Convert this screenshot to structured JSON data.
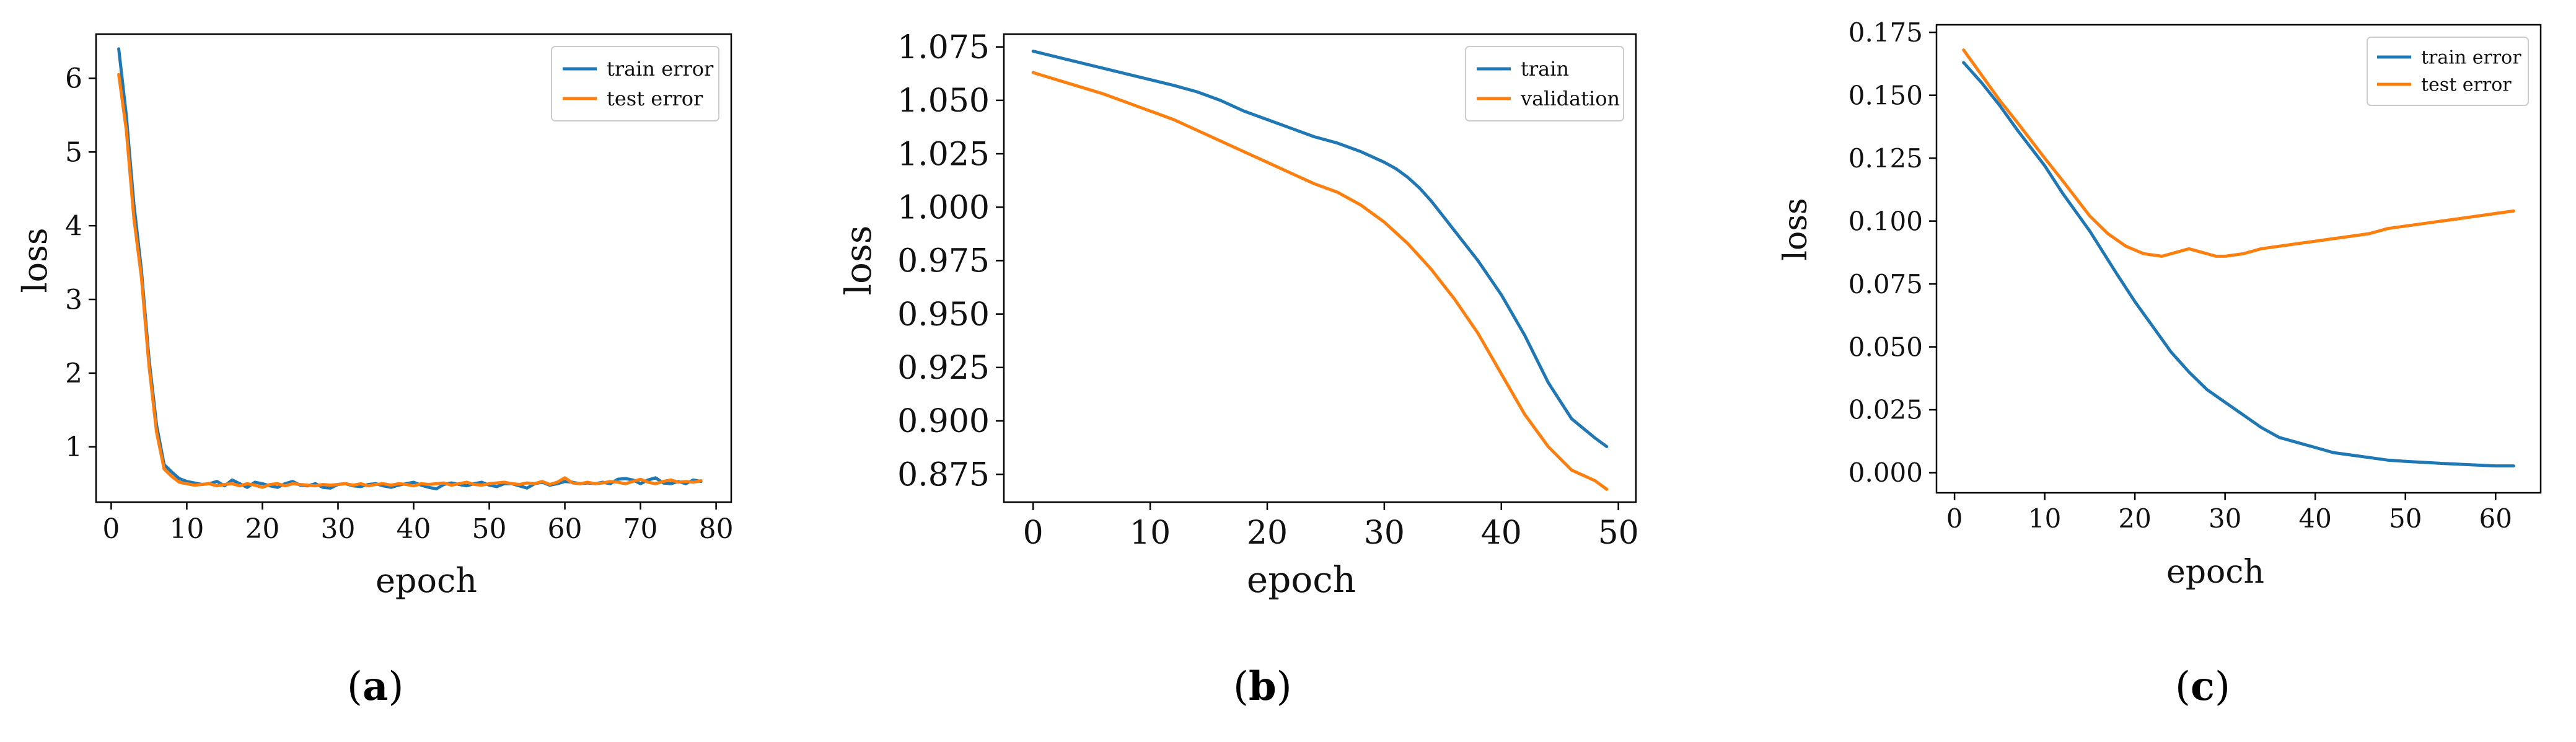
{
  "colors": {
    "train": "#1f77b4",
    "test": "#ff7f0e",
    "axis": "#000000"
  },
  "captions": [
    {
      "open": "(",
      "letter": "a",
      "close": ")"
    },
    {
      "open": "(",
      "letter": "b",
      "close": ")"
    },
    {
      "open": "(",
      "letter": "c",
      "close": ")"
    }
  ],
  "chart_data": [
    {
      "type": "line",
      "title": "",
      "xlabel": "epoch",
      "ylabel": "loss",
      "xlim": [
        -2,
        82
      ],
      "ylim": [
        0.25,
        6.6
      ],
      "xticks": [
        0,
        10,
        20,
        30,
        40,
        50,
        60,
        70,
        80
      ],
      "yticks": [
        1,
        2,
        3,
        4,
        5,
        6
      ],
      "legend_position": "top-right",
      "series": [
        {
          "name": "train error",
          "color": "#1f77b4",
          "x": [
            1,
            2,
            3,
            4,
            5,
            6,
            7,
            8,
            9,
            10,
            11,
            12,
            13,
            14,
            15,
            16,
            17,
            18,
            19,
            20,
            21,
            22,
            23,
            24,
            25,
            26,
            27,
            28,
            29,
            30,
            31,
            32,
            33,
            34,
            35,
            36,
            37,
            38,
            39,
            40,
            41,
            42,
            43,
            44,
            45,
            46,
            47,
            48,
            49,
            50,
            51,
            52,
            53,
            54,
            55,
            56,
            57,
            58,
            59,
            60,
            61,
            62,
            63,
            64,
            65,
            66,
            67,
            68,
            69,
            70,
            71,
            72,
            73,
            74,
            75,
            76,
            77,
            78
          ],
          "y": [
            6.4,
            5.5,
            4.3,
            3.4,
            2.2,
            1.3,
            0.76,
            0.66,
            0.57,
            0.53,
            0.51,
            0.49,
            0.5,
            0.53,
            0.47,
            0.55,
            0.5,
            0.45,
            0.52,
            0.5,
            0.47,
            0.45,
            0.5,
            0.53,
            0.48,
            0.47,
            0.5,
            0.45,
            0.44,
            0.49,
            0.5,
            0.47,
            0.46,
            0.49,
            0.5,
            0.47,
            0.45,
            0.48,
            0.5,
            0.52,
            0.48,
            0.45,
            0.43,
            0.49,
            0.51,
            0.49,
            0.47,
            0.5,
            0.52,
            0.48,
            0.46,
            0.5,
            0.5,
            0.47,
            0.44,
            0.5,
            0.52,
            0.48,
            0.5,
            0.53,
            0.52,
            0.5,
            0.51,
            0.5,
            0.52,
            0.5,
            0.56,
            0.57,
            0.55,
            0.5,
            0.55,
            0.58,
            0.51,
            0.5,
            0.53,
            0.5,
            0.55,
            0.53
          ]
        },
        {
          "name": "test error",
          "color": "#ff7f0e",
          "x": [
            1,
            2,
            3,
            4,
            5,
            6,
            7,
            8,
            9,
            10,
            11,
            12,
            13,
            14,
            15,
            16,
            17,
            18,
            19,
            20,
            21,
            22,
            23,
            24,
            25,
            26,
            27,
            28,
            29,
            30,
            31,
            32,
            33,
            34,
            35,
            36,
            37,
            38,
            39,
            40,
            41,
            42,
            43,
            44,
            45,
            46,
            47,
            48,
            49,
            50,
            51,
            52,
            53,
            54,
            55,
            56,
            57,
            58,
            59,
            60,
            61,
            62,
            63,
            64,
            65,
            66,
            67,
            68,
            69,
            70,
            71,
            72,
            73,
            74,
            75,
            76,
            77,
            78
          ],
          "y": [
            6.05,
            5.3,
            4.1,
            3.3,
            2.1,
            1.2,
            0.7,
            0.6,
            0.52,
            0.5,
            0.48,
            0.49,
            0.5,
            0.47,
            0.49,
            0.5,
            0.47,
            0.5,
            0.48,
            0.45,
            0.49,
            0.5,
            0.47,
            0.5,
            0.49,
            0.48,
            0.47,
            0.49,
            0.48,
            0.49,
            0.5,
            0.48,
            0.5,
            0.47,
            0.49,
            0.5,
            0.48,
            0.5,
            0.49,
            0.47,
            0.5,
            0.49,
            0.5,
            0.51,
            0.48,
            0.5,
            0.52,
            0.49,
            0.48,
            0.5,
            0.51,
            0.52,
            0.5,
            0.49,
            0.51,
            0.5,
            0.53,
            0.49,
            0.52,
            0.58,
            0.51,
            0.5,
            0.52,
            0.5,
            0.51,
            0.53,
            0.52,
            0.5,
            0.53,
            0.56,
            0.52,
            0.5,
            0.53,
            0.55,
            0.52,
            0.53,
            0.52,
            0.54
          ]
        }
      ]
    },
    {
      "type": "line",
      "title": "",
      "xlabel": "epoch",
      "ylabel": "loss",
      "xlim": [
        -2.5,
        51.5
      ],
      "ylim": [
        0.862,
        1.081
      ],
      "xticks": [
        0,
        10,
        20,
        30,
        40,
        50
      ],
      "yticks": [
        0.875,
        0.9,
        0.925,
        0.95,
        0.975,
        1.0,
        1.025,
        1.05,
        1.075
      ],
      "ytick_labels": [
        "0.875",
        "0.900",
        "0.925",
        "0.950",
        "0.975",
        "1.000",
        "1.025",
        "1.050",
        "1.075"
      ],
      "legend_position": "top-right",
      "series": [
        {
          "name": "train",
          "color": "#1f77b4",
          "x": [
            0,
            3,
            6,
            9,
            12,
            14,
            16,
            18,
            20,
            22,
            24,
            26,
            28,
            30,
            31,
            32,
            33,
            34,
            35,
            36,
            38,
            40,
            42,
            44,
            46,
            48,
            49
          ],
          "y": [
            1.073,
            1.069,
            1.065,
            1.061,
            1.057,
            1.054,
            1.05,
            1.045,
            1.041,
            1.037,
            1.033,
            1.03,
            1.026,
            1.021,
            1.018,
            1.014,
            1.009,
            1.003,
            0.996,
            0.989,
            0.975,
            0.959,
            0.94,
            0.918,
            0.901,
            0.892,
            0.888
          ]
        },
        {
          "name": "validation",
          "color": "#ff7f0e",
          "x": [
            0,
            3,
            6,
            9,
            12,
            14,
            16,
            18,
            20,
            22,
            24,
            26,
            28,
            30,
            31,
            32,
            33,
            34,
            35,
            36,
            38,
            40,
            42,
            44,
            46,
            48,
            49
          ],
          "y": [
            1.063,
            1.058,
            1.053,
            1.047,
            1.041,
            1.036,
            1.031,
            1.026,
            1.021,
            1.016,
            1.011,
            1.007,
            1.001,
            0.993,
            0.988,
            0.983,
            0.977,
            0.971,
            0.964,
            0.957,
            0.941,
            0.922,
            0.903,
            0.888,
            0.877,
            0.872,
            0.868
          ]
        }
      ]
    },
    {
      "type": "line",
      "title": "",
      "xlabel": "epoch",
      "ylabel": "loss",
      "xlim": [
        -2,
        65
      ],
      "ylim": [
        -0.008,
        0.178
      ],
      "xticks": [
        0,
        10,
        20,
        30,
        40,
        50,
        60
      ],
      "yticks": [
        0.0,
        0.025,
        0.05,
        0.075,
        0.1,
        0.125,
        0.15,
        0.175
      ],
      "ytick_labels": [
        "0.000",
        "0.025",
        "0.050",
        "0.075",
        "0.100",
        "0.125",
        "0.150",
        "0.175"
      ],
      "legend_position": "top-right",
      "series": [
        {
          "name": "train error",
          "color": "#1f77b4",
          "x": [
            1,
            3,
            5,
            7,
            10,
            12,
            15,
            18,
            20,
            22,
            24,
            26,
            28,
            30,
            32,
            34,
            36,
            38,
            40,
            42,
            45,
            48,
            50,
            55,
            60,
            62
          ],
          "y": [
            0.163,
            0.155,
            0.146,
            0.136,
            0.122,
            0.111,
            0.096,
            0.079,
            0.068,
            0.058,
            0.048,
            0.04,
            0.033,
            0.028,
            0.023,
            0.018,
            0.014,
            0.012,
            0.01,
            0.008,
            0.0065,
            0.005,
            0.0045,
            0.0035,
            0.0027,
            0.0027
          ]
        },
        {
          "name": "test error",
          "color": "#ff7f0e",
          "x": [
            1,
            3,
            5,
            7,
            10,
            12,
            15,
            17,
            19,
            21,
            23,
            24,
            25,
            26,
            27,
            28,
            29,
            30,
            32,
            34,
            36,
            38,
            40,
            42,
            44,
            46,
            48,
            50,
            52,
            54,
            56,
            58,
            60,
            62
          ],
          "y": [
            0.168,
            0.158,
            0.148,
            0.139,
            0.125,
            0.116,
            0.102,
            0.095,
            0.09,
            0.087,
            0.086,
            0.087,
            0.088,
            0.089,
            0.088,
            0.087,
            0.086,
            0.086,
            0.087,
            0.089,
            0.09,
            0.091,
            0.092,
            0.093,
            0.094,
            0.095,
            0.097,
            0.098,
            0.099,
            0.1,
            0.101,
            0.102,
            0.103,
            0.104
          ]
        }
      ]
    }
  ]
}
